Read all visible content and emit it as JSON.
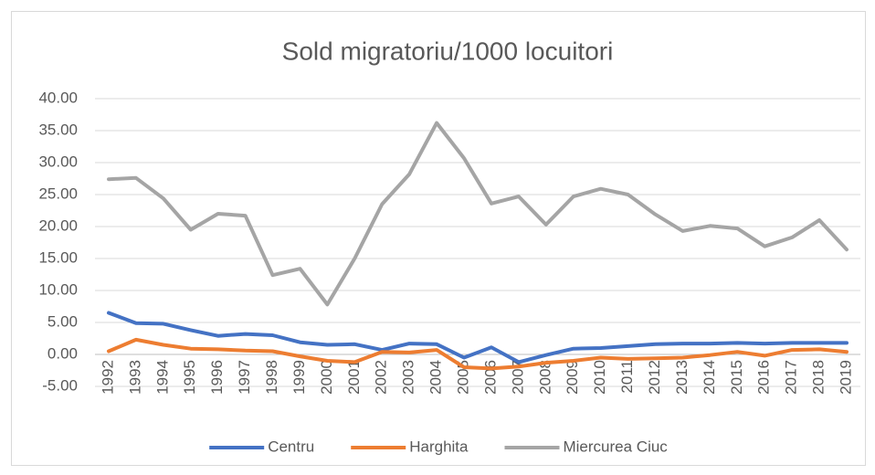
{
  "chart_data": {
    "type": "line",
    "title": "Sold migratoriu/1000 locuitori",
    "categories": [
      "1992",
      "1993",
      "1994",
      "1995",
      "1996",
      "1997",
      "1998",
      "1999",
      "2000",
      "2001",
      "2002",
      "2003",
      "2004",
      "2005",
      "2006",
      "2007",
      "2008",
      "2009",
      "2010",
      "2011",
      "2012",
      "2013",
      "2014",
      "2015",
      "2016",
      "2017",
      "2018",
      "2019"
    ],
    "series": [
      {
        "name": "Centru",
        "color": "#4472c4",
        "values": [
          6.5,
          4.9,
          4.8,
          3.8,
          2.9,
          3.2,
          3.0,
          1.9,
          1.5,
          1.6,
          0.7,
          1.7,
          1.6,
          -0.5,
          1.1,
          -1.2,
          -0.1,
          0.9,
          1.0,
          1.3,
          1.6,
          1.7,
          1.7,
          1.8,
          1.7,
          1.8,
          1.8,
          1.8
        ]
      },
      {
        "name": "Harghita",
        "color": "#ed7d31",
        "values": [
          0.5,
          2.3,
          1.5,
          0.9,
          0.8,
          0.6,
          0.5,
          -0.3,
          -1.0,
          -1.2,
          0.4,
          0.3,
          0.7,
          -2.0,
          -2.2,
          -1.9,
          -1.3,
          -1.0,
          -0.5,
          -0.7,
          -0.6,
          -0.5,
          -0.1,
          0.4,
          -0.2,
          0.7,
          0.8,
          0.4
        ]
      },
      {
        "name": "Miercurea Ciuc",
        "color": "#a5a5a5",
        "values": [
          27.4,
          27.6,
          24.4,
          19.5,
          22.0,
          21.7,
          12.4,
          13.4,
          7.8,
          15.0,
          23.5,
          28.2,
          36.2,
          30.7,
          23.6,
          24.7,
          20.3,
          24.7,
          25.9,
          25.0,
          21.9,
          19.3,
          20.1,
          19.7,
          16.9,
          18.3,
          21.0,
          16.4
        ]
      }
    ],
    "ylim": [
      -5,
      40
    ],
    "yticks": [
      {
        "value": -5,
        "label": "-5.00"
      },
      {
        "value": 0,
        "label": "0.00"
      },
      {
        "value": 5,
        "label": "5.00"
      },
      {
        "value": 10,
        "label": "10.00"
      },
      {
        "value": 15,
        "label": "15.00"
      },
      {
        "value": 20,
        "label": "20.00"
      },
      {
        "value": 25,
        "label": "25.00"
      },
      {
        "value": 30,
        "label": "30.00"
      },
      {
        "value": 35,
        "label": "35.00"
      },
      {
        "value": 40,
        "label": "40.00"
      }
    ],
    "grid": true,
    "legend": "bottom"
  }
}
